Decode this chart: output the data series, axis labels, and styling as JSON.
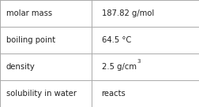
{
  "rows": [
    {
      "label": "molar mass",
      "value": "187.82 g/mol",
      "has_superscript": false
    },
    {
      "label": "boiling point",
      "value": "64.5 °C",
      "has_superscript": false
    },
    {
      "label": "density",
      "value_base": "2.5 g/cm",
      "value_sup": "3",
      "has_superscript": true
    },
    {
      "label": "solubility in water",
      "value": "reacts",
      "has_superscript": false
    }
  ],
  "col_split": 0.46,
  "background_color": "#ffffff",
  "border_color": "#aaaaaa",
  "text_color": "#222222",
  "font_size": 7.2,
  "sup_font_size": 5.0,
  "figwidth": 2.52,
  "figheight": 1.36,
  "dpi": 100
}
